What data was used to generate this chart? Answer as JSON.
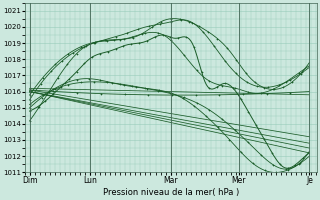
{
  "xlabel": "Pression niveau de la mer( hPa )",
  "ylim": [
    1011,
    1021.5
  ],
  "xlim": [
    0,
    4.85
  ],
  "yticks": [
    1011,
    1012,
    1013,
    1014,
    1015,
    1016,
    1017,
    1018,
    1019,
    1020,
    1021
  ],
  "xtick_labels": [
    "Dim",
    "Lun",
    "Mar",
    "Mer",
    "Je"
  ],
  "xtick_positions": [
    0.08,
    1.08,
    2.42,
    3.55,
    4.72
  ],
  "bg_color": "#cce8de",
  "grid_color": "#99ccbb",
  "line_color": "#1a5c28"
}
